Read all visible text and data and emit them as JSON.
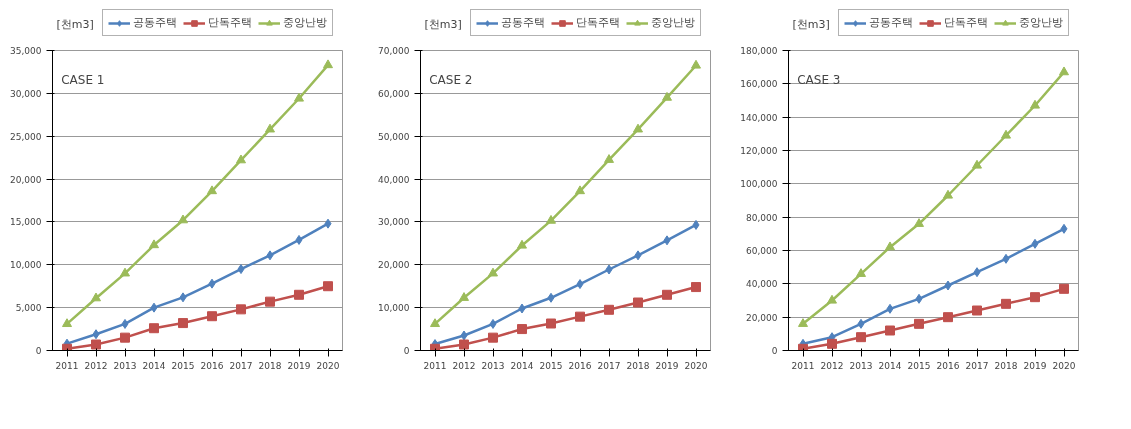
{
  "chart_data": [
    {
      "type": "line",
      "ylabel": "[천m3]",
      "annotations": [
        "CASE 1"
      ],
      "categories": [
        "2011",
        "2012",
        "2013",
        "2014",
        "2015",
        "2016",
        "2017",
        "2018",
        "2019",
        "2020"
      ],
      "ylim": [
        0,
        35000
      ],
      "yticks": [
        {
          "value": 0,
          "label": "0"
        },
        {
          "value": 5000,
          "label": "5,000"
        },
        {
          "value": 10000,
          "label": "10,000"
        },
        {
          "value": 15000,
          "label": "15,000"
        },
        {
          "value": 20000,
          "label": "20,000"
        },
        {
          "value": 25000,
          "label": "25,000"
        },
        {
          "value": 30000,
          "label": "30,000"
        },
        {
          "value": 35000,
          "label": "35,000"
        }
      ],
      "grid": "y",
      "legend": "top",
      "series": [
        {
          "name": "공동주택",
          "color": "#4f81bd",
          "marker": "diamond",
          "values": [
            800,
            1900,
            3100,
            5000,
            6200,
            7800,
            9500,
            11100,
            12900,
            14800
          ]
        },
        {
          "name": "단독주택",
          "color": "#c0504d",
          "marker": "square",
          "values": [
            200,
            700,
            1500,
            2600,
            3200,
            4000,
            4800,
            5700,
            6500,
            7500
          ]
        },
        {
          "name": "중앙난방",
          "color": "#9bbb59",
          "marker": "triangle",
          "values": [
            3100,
            6100,
            9000,
            12300,
            15200,
            18600,
            22200,
            25800,
            29400,
            33300
          ]
        }
      ]
    },
    {
      "type": "line",
      "ylabel": "[천m3]",
      "annotations": [
        "CASE 2"
      ],
      "categories": [
        "2011",
        "2012",
        "2013",
        "2014",
        "2015",
        "2016",
        "2017",
        "2018",
        "2019",
        "2020"
      ],
      "ylim": [
        0,
        70000
      ],
      "yticks": [
        {
          "value": 0,
          "label": "0"
        },
        {
          "value": 10000,
          "label": "10,000"
        },
        {
          "value": 20000,
          "label": "20,000"
        },
        {
          "value": 30000,
          "label": "30,000"
        },
        {
          "value": 40000,
          "label": "40,000"
        },
        {
          "value": 50000,
          "label": "50,000"
        },
        {
          "value": 60000,
          "label": "60,000"
        },
        {
          "value": 70000,
          "label": "70,000"
        }
      ],
      "grid": "y",
      "legend": "top",
      "series": [
        {
          "name": "공동주택",
          "color": "#4f81bd",
          "marker": "diamond",
          "values": [
            1500,
            3500,
            6200,
            9800,
            12300,
            15500,
            18900,
            22200,
            25700,
            29300
          ]
        },
        {
          "name": "단독주택",
          "color": "#c0504d",
          "marker": "square",
          "values": [
            400,
            1400,
            3000,
            5000,
            6300,
            7900,
            9500,
            11200,
            13000,
            14800
          ]
        },
        {
          "name": "중앙난방",
          "color": "#9bbb59",
          "marker": "triangle",
          "values": [
            6200,
            12300,
            18000,
            24500,
            30300,
            37200,
            44500,
            51600,
            59000,
            66500
          ]
        }
      ]
    },
    {
      "type": "line",
      "ylabel": "[천m3]",
      "annotations": [
        "CASE 3"
      ],
      "categories": [
        "2011",
        "2012",
        "2013",
        "2014",
        "2015",
        "2016",
        "2017",
        "2018",
        "2019",
        "2020"
      ],
      "ylim": [
        0,
        180000
      ],
      "yticks": [
        {
          "value": 0,
          "label": "0"
        },
        {
          "value": 20000,
          "label": "20,000"
        },
        {
          "value": 40000,
          "label": "40,000"
        },
        {
          "value": 60000,
          "label": "60,000"
        },
        {
          "value": 80000,
          "label": "80,000"
        },
        {
          "value": 100000,
          "label": "100,000"
        },
        {
          "value": 120000,
          "label": "120,000"
        },
        {
          "value": 140000,
          "label": "140,000"
        },
        {
          "value": 160000,
          "label": "160,000"
        },
        {
          "value": 180000,
          "label": "180,000"
        }
      ],
      "grid": "y",
      "legend": "top",
      "series": [
        {
          "name": "공동주택",
          "color": "#4f81bd",
          "marker": "diamond",
          "values": [
            4000,
            8000,
            16000,
            25000,
            31000,
            39000,
            47000,
            55000,
            64000,
            73000
          ]
        },
        {
          "name": "단독주택",
          "color": "#c0504d",
          "marker": "square",
          "values": [
            1000,
            4000,
            8000,
            12000,
            16000,
            20000,
            24000,
            28000,
            32000,
            37000
          ]
        },
        {
          "name": "중앙난방",
          "color": "#9bbb59",
          "marker": "triangle",
          "values": [
            16000,
            30000,
            46000,
            62000,
            76000,
            93000,
            111000,
            129000,
            147000,
            167000
          ]
        }
      ]
    }
  ]
}
